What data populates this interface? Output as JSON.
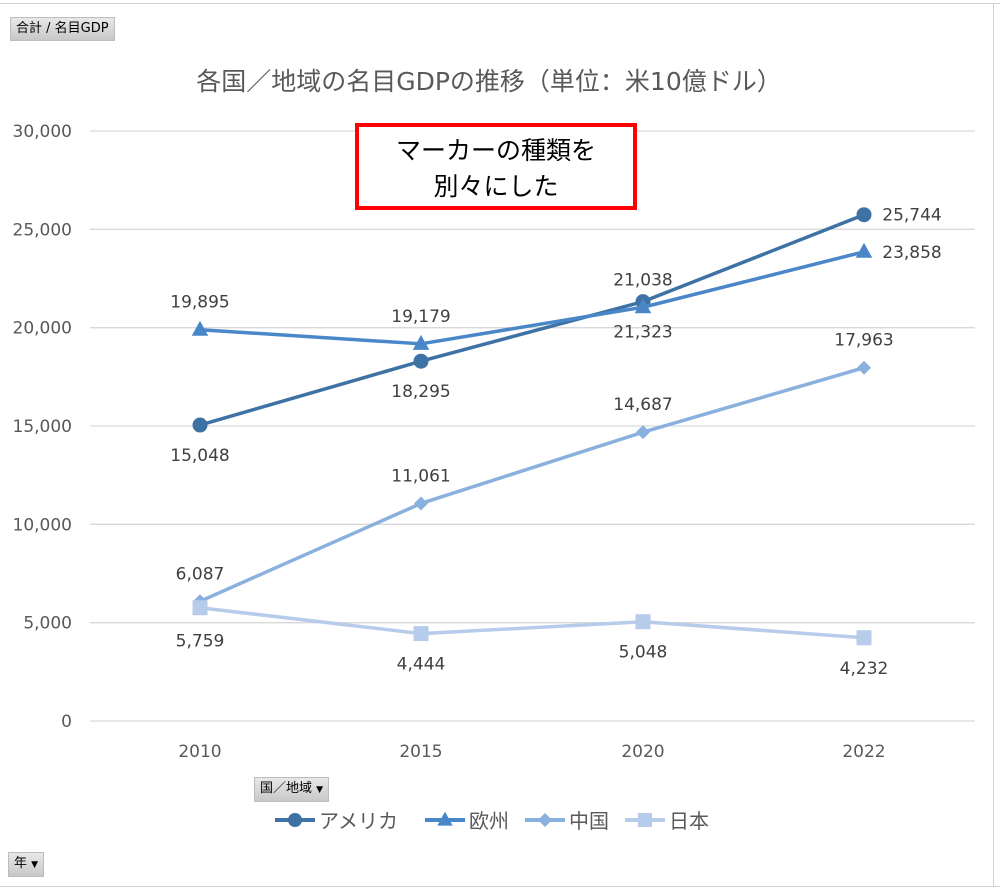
{
  "field_buttons": {
    "values": "合計 / 名目GDP",
    "legend": "国／地域",
    "axis": "年"
  },
  "callout": {
    "line1": "マーカーの種類を",
    "line2": "別々にした"
  },
  "chart_data": {
    "type": "line",
    "title": "各国／地域の名目GDPの推移（単位：米10億ドル）",
    "xlabel": "",
    "ylabel": "",
    "categories": [
      "2010",
      "2015",
      "2020",
      "2022"
    ],
    "ylim": [
      0,
      30000
    ],
    "yticks": [
      "0",
      "5,000",
      "10,000",
      "15,000",
      "20,000",
      "25,000",
      "30,000"
    ],
    "grid": true,
    "legend_position": "bottom",
    "series": [
      {
        "name": "アメリカ",
        "marker": "circle",
        "color": "#3f72a4",
        "values": [
          15048,
          18295,
          21323,
          25744
        ],
        "labels": [
          "15,048",
          "18,295",
          "21,323",
          "25,744"
        ]
      },
      {
        "name": "欧州",
        "marker": "triangle",
        "color": "#4a87c8",
        "values": [
          19895,
          19179,
          21038,
          23858
        ],
        "labels": [
          "19,895",
          "19,179",
          "21,038",
          "23,858"
        ]
      },
      {
        "name": "中国",
        "marker": "diamond",
        "color": "#8ab0de",
        "values": [
          6087,
          11061,
          14687,
          17963
        ],
        "labels": [
          "6,087",
          "11,061",
          "14,687",
          "17,963"
        ]
      },
      {
        "name": "日本",
        "marker": "square",
        "color": "#b7cbea",
        "values": [
          5759,
          4444,
          5048,
          4232
        ],
        "labels": [
          "5,759",
          "4,444",
          "5,048",
          "4,232"
        ]
      }
    ]
  }
}
